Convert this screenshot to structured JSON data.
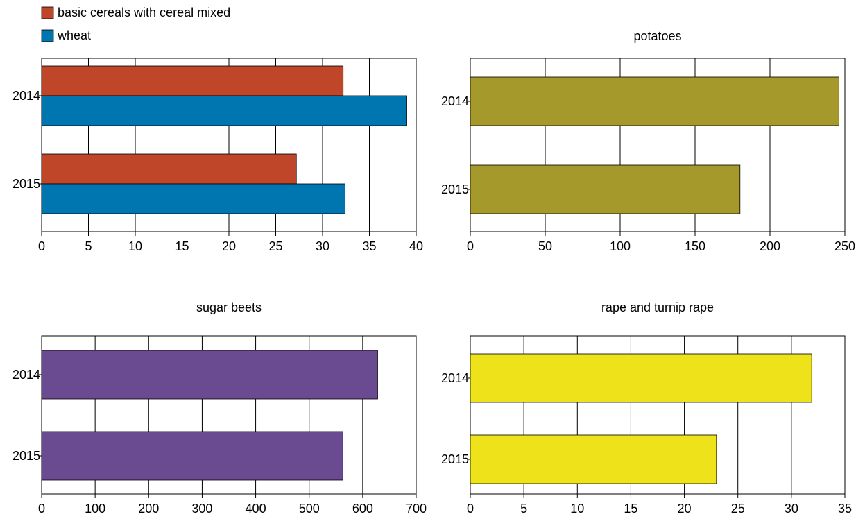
{
  "chart_data": [
    {
      "type": "bar",
      "orientation": "horizontal",
      "title": "",
      "categories": [
        "2014",
        "2015"
      ],
      "series": [
        {
          "name": "basic cereals with cereal mixed",
          "color": "#c0462a",
          "values": [
            32.2,
            27.2
          ]
        },
        {
          "name": "wheat",
          "color": "#0076b0",
          "values": [
            39.0,
            32.4
          ]
        }
      ],
      "xlim": [
        0,
        40
      ],
      "xticks": [
        0,
        5,
        10,
        15,
        20,
        25,
        30,
        35,
        40
      ],
      "grid": true,
      "legend": "top-left"
    },
    {
      "type": "bar",
      "orientation": "horizontal",
      "title": "potatoes",
      "categories": [
        "2014",
        "2015"
      ],
      "series": [
        {
          "color": "#a6992b",
          "values": [
            246,
            180
          ]
        }
      ],
      "xlim": [
        0,
        250
      ],
      "xticks": [
        0,
        50,
        100,
        150,
        200,
        250
      ],
      "grid": true
    },
    {
      "type": "bar",
      "orientation": "horizontal",
      "title": "sugar beets",
      "categories": [
        "2014",
        "2015"
      ],
      "series": [
        {
          "color": "#6a4a90",
          "values": [
            628,
            563
          ]
        }
      ],
      "xlim": [
        0,
        700
      ],
      "xticks": [
        0,
        100,
        200,
        300,
        400,
        500,
        600,
        700
      ],
      "grid": true
    },
    {
      "type": "bar",
      "orientation": "horizontal",
      "title": "rape and turnip rape",
      "categories": [
        "2014",
        "2015"
      ],
      "series": [
        {
          "color": "#eee21a",
          "values": [
            31.9,
            23.0
          ]
        }
      ],
      "xlim": [
        0,
        35
      ],
      "xticks": [
        0,
        5,
        10,
        15,
        20,
        25,
        30,
        35
      ],
      "grid": true
    }
  ]
}
